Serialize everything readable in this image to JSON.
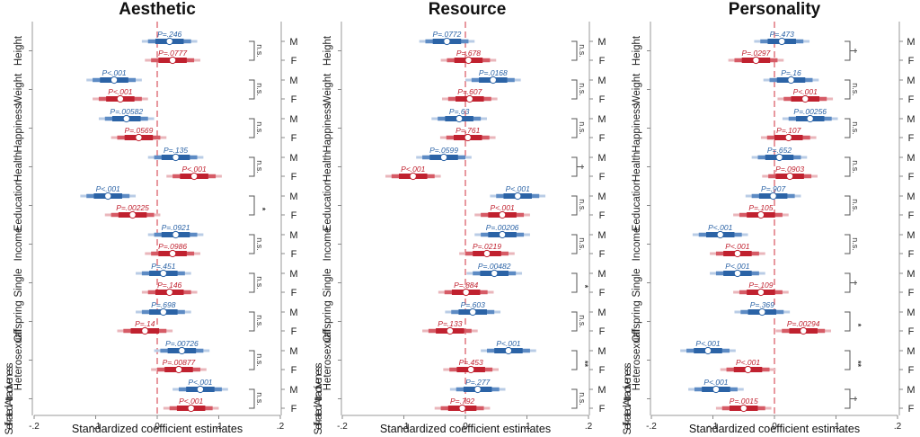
{
  "chart_data": [
    {
      "type": "forest",
      "title": "Aesthetic",
      "xlabel": "Standardized coefficient estimates",
      "xlim": [
        -0.2,
        0.2
      ],
      "xticks": [
        "-.2",
        "-.1",
        "0",
        ".1",
        ".2"
      ],
      "xtick_values": [
        -0.2,
        -0.1,
        0,
        0.1,
        0.2
      ],
      "reference_line": 0,
      "categories": [
        "Height",
        "Weight",
        "Happiness",
        "Health",
        "Eeducation",
        "Income",
        "Single",
        "Offspring",
        "Heterosexual",
        "Self-rated Attractiveness"
      ],
      "series": [
        {
          "name": "M",
          "color": "#2166ac",
          "estimates": [
            0.02,
            -0.07,
            -0.05,
            0.03,
            -0.08,
            0.03,
            0.01,
            0.01,
            0.04,
            0.07
          ],
          "p_labels": [
            "P=.246",
            "P<.001",
            "P=.00582",
            "P=.135",
            "P<.001",
            "P=.0921",
            "P=.451",
            "P=.698",
            "P=.00726",
            "P<.001"
          ]
        },
        {
          "name": "F",
          "color": "#b2182b",
          "estimates": [
            0.025,
            -0.06,
            -0.03,
            0.06,
            -0.04,
            0.025,
            0.02,
            -0.02,
            0.035,
            0.055
          ],
          "p_labels": [
            "P=.0777",
            "P<.001",
            "P=.0569",
            "P<.001",
            "P=.00225",
            "P=.0986",
            "P=.146",
            "P=.14",
            "P=.00877",
            "P<.001"
          ]
        }
      ],
      "significance": [
        "n.s.",
        "n.s.",
        "n.s.",
        "n.s.",
        "*",
        "n.s.",
        "n.s.",
        "n.s.",
        "n.s.",
        "n.s."
      ]
    },
    {
      "type": "forest",
      "title": "Resource",
      "xlabel": "Standardized coefficient estimates",
      "xlim": [
        -0.2,
        0.2
      ],
      "xticks": [
        "-.2",
        "-.1",
        "0",
        ".1",
        ".2"
      ],
      "xtick_values": [
        -0.2,
        -0.1,
        0,
        0.1,
        0.2
      ],
      "reference_line": 0,
      "categories": [
        "Height",
        "Weight",
        "Happiness",
        "Health",
        "Eeducation",
        "Income",
        "Single",
        "Offspring",
        "Heterosexual",
        "Self-rated Attractiveness"
      ],
      "series": [
        {
          "name": "M",
          "color": "#2166ac",
          "estimates": [
            -0.03,
            0.045,
            -0.01,
            -0.035,
            0.085,
            0.06,
            0.047,
            0.012,
            0.07,
            0.02
          ],
          "p_labels": [
            "P=.0772",
            "P=.0168",
            "P=.63",
            "P=.0599",
            "P<.001",
            "P=.00206",
            "P=.00482",
            "P=.603",
            "P<.001",
            "P=.277"
          ]
        },
        {
          "name": "F",
          "color": "#b2182b",
          "estimates": [
            0.005,
            0.007,
            0.004,
            -0.085,
            0.06,
            0.035,
            0.001,
            -0.025,
            0.009,
            -0.005
          ],
          "p_labels": [
            "P=.678",
            "P=.607",
            "P=.761",
            "P<.001",
            "P<.001",
            "P=.0219",
            "P=.884",
            "P=.133",
            "P=.453",
            "P=.792"
          ]
        }
      ],
      "significance": [
        "n.s.",
        "n.s.",
        "n.s.",
        "†",
        "n.s.",
        "n.s.",
        "*",
        "n.s.",
        "**",
        "n.s."
      ]
    },
    {
      "type": "forest",
      "title": "Personality",
      "xlabel": "Standardized coefficient estimates",
      "xlim": [
        -0.2,
        0.2
      ],
      "xticks": [
        "-.2",
        "-.1",
        "0",
        ".1",
        ".2"
      ],
      "xtick_values": [
        -0.2,
        -0.1,
        0,
        0.1,
        0.2
      ],
      "reference_line": 0,
      "categories": [
        "Height",
        "Weight",
        "Happiness",
        "Health",
        "Eeducation",
        "Income",
        "Single",
        "Offspring",
        "Heterosexual",
        "Self-rated Attractiveness"
      ],
      "series": [
        {
          "name": "M",
          "color": "#2166ac",
          "estimates": [
            0.012,
            0.027,
            0.058,
            0.008,
            -0.002,
            -0.088,
            -0.06,
            -0.02,
            -0.108,
            -0.095
          ],
          "p_labels": [
            "P=.473",
            "P=.16",
            "P=.00256",
            "P=.652",
            "P=.907",
            "P<.001",
            "P<.001",
            "P=.369",
            "P<.001",
            "P<.001"
          ]
        },
        {
          "name": "F",
          "color": "#b2182b",
          "estimates": [
            -0.03,
            0.05,
            0.023,
            0.025,
            -0.022,
            -0.06,
            -0.022,
            0.047,
            -0.043,
            -0.05
          ],
          "p_labels": [
            "P=.0297",
            "P<.001",
            "P=.107",
            "P=.0903",
            "P=.105",
            "P<.001",
            "P=.109",
            "P=.00294",
            "P<.001",
            "P=.0015"
          ]
        }
      ],
      "significance": [
        "†",
        "n.s.",
        "n.s.",
        "n.s.",
        "n.s.",
        "n.s.",
        "†",
        "*",
        "**",
        "†"
      ]
    }
  ],
  "sex_labels": {
    "male": "M",
    "female": "F"
  }
}
